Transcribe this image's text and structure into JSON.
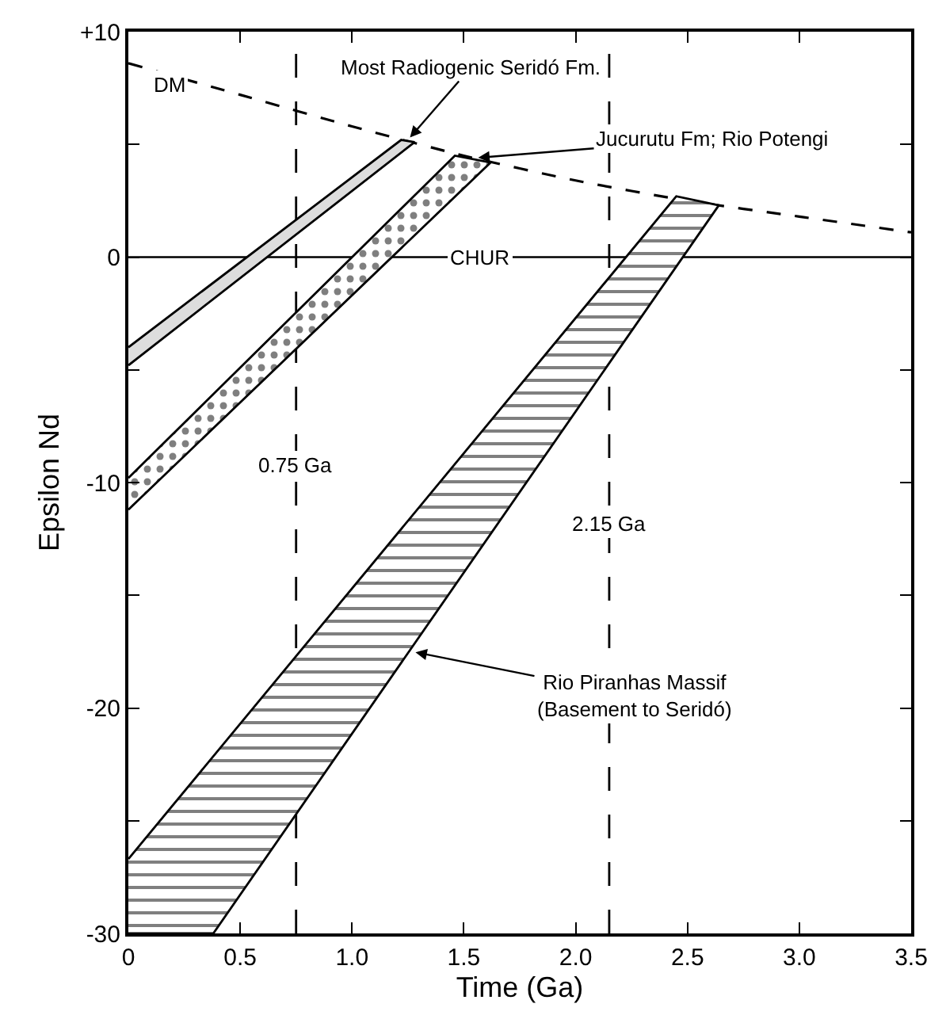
{
  "chart_data": {
    "type": "line",
    "xlabel": "Time (Ga)",
    "ylabel": "Epsilon Nd",
    "xlim": [
      0,
      3.5
    ],
    "ylim": [
      -30,
      10
    ],
    "xticks": [
      0,
      0.5,
      {
        "value": 1,
        "label": "1.0"
      },
      1.5,
      {
        "value": 2,
        "label": "2.0"
      },
      2.5,
      {
        "value": 3,
        "label": "3.0"
      },
      3.5
    ],
    "yticks": [
      {
        "value": -30,
        "label": "-30"
      },
      {
        "value": -25,
        "label": null
      },
      {
        "value": -20,
        "label": "-20"
      },
      {
        "value": -15,
        "label": null
      },
      {
        "value": -10,
        "label": "-10"
      },
      {
        "value": -5,
        "label": null
      },
      0,
      {
        "value": 5,
        "label": null
      },
      {
        "value": 10,
        "label": "+10"
      }
    ],
    "grid": false,
    "legend": false,
    "series": [
      {
        "name": "DM",
        "line_style": "dashed",
        "color": "#000000",
        "x": [
          0,
          0.5,
          1.0,
          1.5,
          2.0,
          2.5,
          3.0,
          3.5
        ],
        "values": [
          8.6,
          7.2,
          5.8,
          4.5,
          3.4,
          2.5,
          1.8,
          1.1
        ]
      },
      {
        "type": "area",
        "color": "#000000",
        "x": [
          0,
          1.22,
          1.28,
          0
        ],
        "values": [
          -4.0,
          5.2,
          5.1,
          -4.8
        ]
      },
      {
        "type": "area",
        "color": "#000000",
        "x": [
          0,
          1.46,
          1.62,
          0
        ],
        "values": [
          -9.8,
          4.5,
          4.2,
          -11.2
        ]
      },
      {
        "type": "area",
        "color": "#000000",
        "x": [
          0,
          2.45,
          2.64,
          0.38,
          0
        ],
        "values": [
          -26.7,
          2.7,
          2.3,
          -30,
          -30
        ]
      }
    ],
    "ref_lines": [
      {
        "axis": "y",
        "value": 0,
        "label": "CHUR",
        "line_style": "solid",
        "color": "#000000"
      },
      {
        "axis": "x",
        "value": 0.75,
        "label": "0.75 Ga",
        "line_style": "dashed",
        "color": "#000000"
      },
      {
        "axis": "x",
        "value": 2.15,
        "label": "2.15 Ga",
        "line_style": "dashed",
        "color": "#000000"
      }
    ],
    "annotations": [
      {
        "text": "Most Radiogenic Seridó Fm.",
        "x": 1.25,
        "y": 5.2
      },
      {
        "text": "Jucurutu Fm; Rio Potengi",
        "x": 1.55,
        "y": 4.4
      },
      {
        "text": "Rio Piranhas Massif\n(Basement to Seridó)",
        "x": 1.27,
        "y": -17.5
      }
    ]
  }
}
